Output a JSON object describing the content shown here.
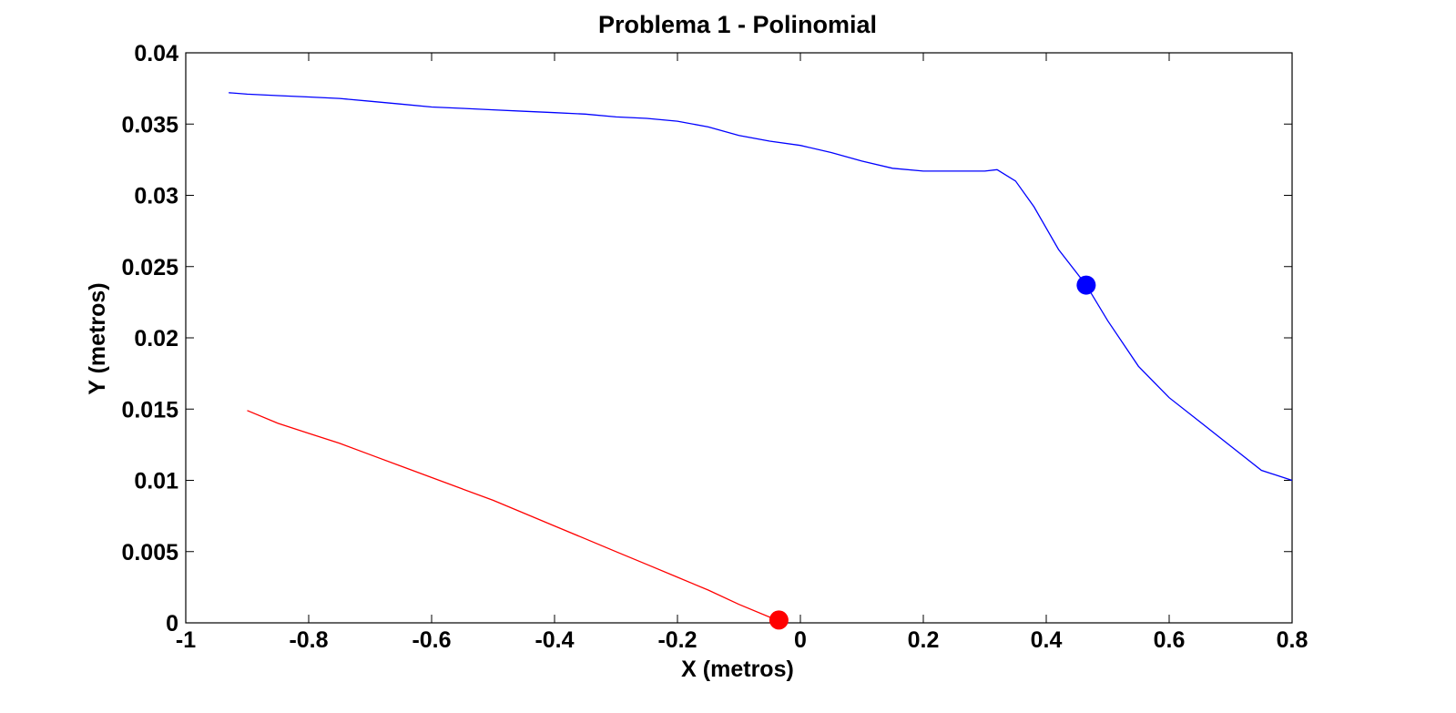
{
  "chart_data": {
    "type": "line",
    "title": "Problema 1 - Polinomial",
    "xlabel": "X (metros)",
    "ylabel": "Y (metros)",
    "xlim": [
      -1,
      0.8
    ],
    "ylim": [
      0,
      0.04
    ],
    "x_ticks": [
      -1,
      -0.8,
      -0.6,
      -0.4,
      -0.2,
      0,
      0.2,
      0.4,
      0.6,
      0.8
    ],
    "x_tick_labels": [
      "-1",
      "-0.8",
      "-0.6",
      "-0.4",
      "-0.2",
      "0",
      "0.2",
      "0.4",
      "0.6",
      "0.8"
    ],
    "y_ticks": [
      0,
      0.005,
      0.01,
      0.015,
      0.02,
      0.025,
      0.03,
      0.035,
      0.04
    ],
    "y_tick_labels": [
      "0",
      "0.005",
      "0.01",
      "0.015",
      "0.02",
      "0.025",
      "0.03",
      "0.035",
      "0.04"
    ],
    "grid": false,
    "legend": "none",
    "series": [
      {
        "color": "#0000ff",
        "x": [
          -0.93,
          -0.9,
          -0.85,
          -0.8,
          -0.75,
          -0.7,
          -0.65,
          -0.6,
          -0.55,
          -0.5,
          -0.45,
          -0.4,
          -0.35,
          -0.3,
          -0.25,
          -0.2,
          -0.15,
          -0.1,
          -0.05,
          0.0,
          0.05,
          0.1,
          0.15,
          0.2,
          0.25,
          0.3,
          0.32,
          0.35,
          0.38,
          0.42,
          0.465,
          0.5,
          0.55,
          0.6,
          0.65,
          0.7,
          0.75,
          0.8
        ],
        "y": [
          0.0372,
          0.0371,
          0.037,
          0.0369,
          0.0368,
          0.0366,
          0.0364,
          0.0362,
          0.0361,
          0.036,
          0.0359,
          0.0358,
          0.0357,
          0.0355,
          0.0354,
          0.0352,
          0.0348,
          0.0342,
          0.0338,
          0.0335,
          0.033,
          0.0324,
          0.0319,
          0.0317,
          0.0317,
          0.0317,
          0.0318,
          0.031,
          0.0292,
          0.0262,
          0.0237,
          0.0212,
          0.018,
          0.0158,
          0.0141,
          0.0124,
          0.0107,
          0.01
        ],
        "marker": {
          "x": 0.465,
          "y": 0.0237
        }
      },
      {
        "color": "#ff0000",
        "x": [
          -0.9,
          -0.85,
          -0.8,
          -0.75,
          -0.7,
          -0.65,
          -0.6,
          -0.55,
          -0.5,
          -0.45,
          -0.4,
          -0.35,
          -0.3,
          -0.25,
          -0.2,
          -0.15,
          -0.1,
          -0.05,
          -0.03
        ],
        "y": [
          0.0149,
          0.014,
          0.0133,
          0.0126,
          0.0118,
          0.011,
          0.0102,
          0.0094,
          0.0086,
          0.0077,
          0.0068,
          0.0059,
          0.005,
          0.0041,
          0.0032,
          0.0023,
          0.0013,
          0.0004,
          0.0002
        ],
        "marker": {
          "x": -0.035,
          "y": 0.0002
        }
      }
    ]
  }
}
